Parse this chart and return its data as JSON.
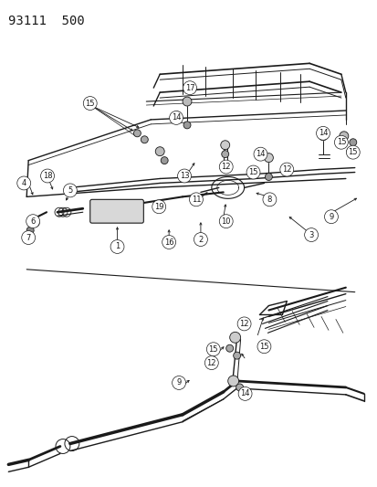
{
  "title": "93111  500",
  "bg_color": "#ffffff",
  "line_color": "#1a1a1a",
  "figsize": [
    4.14,
    5.33
  ],
  "dpi": 100,
  "title_fontsize": 10,
  "callout_fontsize": 6.0
}
